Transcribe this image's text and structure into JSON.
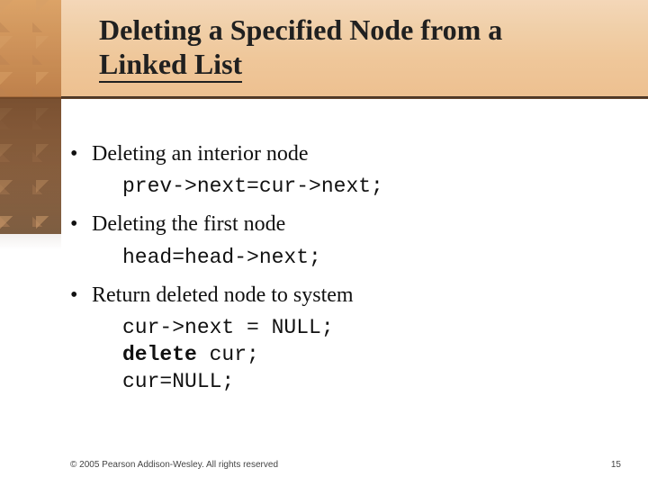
{
  "title_line1": "Deleting a Specified Node from a",
  "title_line2_underlined": "Linked List",
  "bullets": [
    {
      "text": "Deleting an interior node",
      "code": [
        "prev->next=cur->next;"
      ]
    },
    {
      "text": "Deleting the first node",
      "code": [
        "head=head->next;"
      ]
    },
    {
      "text": "Return deleted node to system",
      "code": [
        "cur->next = NULL;",
        "<b>delete</b> cur;",
        "cur=NULL;"
      ]
    }
  ],
  "footer_copyright": "© 2005 Pearson Addison-Wesley. All rights reserved",
  "footer_page": "15",
  "colors": {
    "header_gradient_top": "#f4d7b8",
    "header_gradient_bottom": "#edc090",
    "header_divider": "#3a2b1f",
    "side_decor": "#b4733e",
    "title_text": "#202020",
    "body_text": "#111111",
    "background": "#ffffff"
  },
  "fonts": {
    "title": "Times New Roman, bold, 32pt",
    "body": "Times New Roman, 24pt",
    "code": "Courier New, 23pt",
    "footer": "Arial, 10pt"
  }
}
